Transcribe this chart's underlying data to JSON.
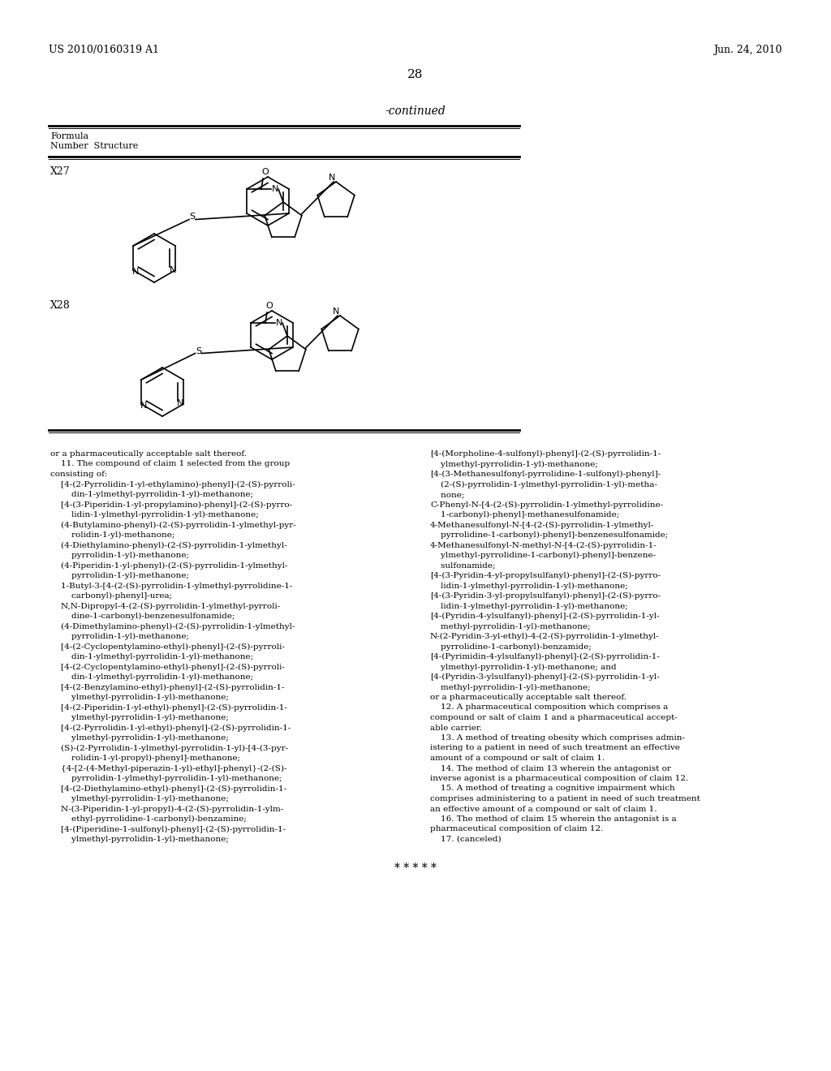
{
  "background_color": "#ffffff",
  "header_left": "US 2010/0160319 A1",
  "header_right": "Jun. 24, 2010",
  "page_number": "28",
  "continued_label": "-continued",
  "table_header_line1": "Formula",
  "table_header_line2": "Number  Structure",
  "formula_x27": "X27",
  "formula_x28": "X28",
  "text_block": "or a pharmaceutically acceptable salt thereof.\n    11. The compound of claim 1 selected from the group\nconsisting of:\n    [4-(2-Pyrrolidin-1-yl-ethylamino)-phenyl]-(2-(S)-pyrroli-\n        din-1-ylmethyl-pyrrolidin-1-yl)-methanone;\n    [4-(3-Piperidin-1-yl-propylamino)-phenyl]-(2-(S)-pyrro-\n        lidin-1-ylmethyl-pyrrolidin-1-yl)-methanone;\n    (4-Butylamino-phenyl)-(2-(S)-pyrrolidin-1-ylmethyl-pyr-\n        rolidin-1-yl)-methanone;\n    (4-Diethylamino-phenyl)-(2-(S)-pyrrolidin-1-ylmethyl-\n        pyrrolidin-1-yl)-methanone;\n    (4-Piperidin-1-yl-phenyl)-(2-(S)-pyrrolidin-1-ylmethyl-\n        pyrrolidin-1-yl)-methanone;\n    1-Butyl-3-[4-(2-(S)-pyrrolidin-1-ylmethyl-pyrrolidine-1-\n        carbonyl)-phenyl]-urea;\n    N,N-Dipropyl-4-(2-(S)-pyrrolidin-1-ylmethyl-pyrroli-\n        dine-1-carbonyl)-benzenesulfonamide;\n    (4-Dimethylamino-phenyl)-(2-(S)-pyrrolidin-1-ylmethyl-\n        pyrrolidin-1-yl)-methanone;\n    [4-(2-Cyclopentylamino-ethyl)-phenyl]-(2-(S)-pyrroli-\n        din-1-ylmethyl-pyrrolidin-1-yl)-methanone;\n    [4-(2-Cyclopentylamino-ethyl)-phenyl]-(2-(S)-pyrroli-\n        din-1-ylmethyl-pyrrolidin-1-yl)-methanone;\n    [4-(2-Benzylamino-ethyl)-phenyl]-(2-(S)-pyrrolidin-1-\n        ylmethyl-pyrrolidin-1-yl)-methanone;\n    [4-(2-Piperidin-1-yl-ethyl)-phenyl]-(2-(S)-pyrrolidin-1-\n        ylmethyl-pyrrolidin-1-yl)-methanone;\n    [4-(2-Pyrrolidin-1-yl-ethyl)-phenyl]-(2-(S)-pyrrolidin-1-\n        ylmethyl-pyrrolidin-1-yl)-methanone;\n    (S)-(2-Pyrrolidin-1-ylmethyl-pyrrolidin-1-yl)-[4-(3-pyr-\n        rolidin-1-yl-propyl)-phenyl]-methanone;\n    {4-[2-(4-Methyl-piperazin-1-yl)-ethyl]-phenyl}-(2-(S)-\n        pyrrolidin-1-ylmethyl-pyrrolidin-1-yl)-methanone;\n    [4-(2-Diethylamino-ethyl)-phenyl]-(2-(S)-pyrrolidin-1-\n        ylmethyl-pyrrolidin-1-yl)-methanone;\n    N-(3-Piperidin-1-yl-propyl)-4-(2-(S)-pyrrolidin-1-ylm-\n        ethyl-pyrrolidine-1-carbonyl)-benzamine;\n    [4-(Piperidine-1-sulfonyl)-phenyl]-(2-(S)-pyrrolidin-1-\n        ylmethyl-pyrrolidin-1-yl)-methanone;",
  "text_block_right": "[4-(Morpholine-4-sulfonyl)-phenyl]-(2-(S)-pyrrolidin-1-\n    ylmethyl-pyrrolidin-1-yl)-methanone;\n[4-(3-Methanesulfonyl-pyrrolidine-1-sulfonyl)-phenyl]-\n    (2-(S)-pyrrolidin-1-ylmethyl-pyrrolidin-1-yl)-metha-\n    none;\nC-Phenyl-N-[4-(2-(S)-pyrrolidin-1-ylmethyl-pyrrolidine-\n    1-carbonyl)-phenyl]-methanesulfonamide;\n4-Methanesulfonyl-N-[4-(2-(S)-pyrrolidin-1-ylmethyl-\n    pyrrolidine-1-carbonyl)-phenyl]-benzenesulfonamide;\n4-Methanesulfonyl-N-methyl-N-[4-(2-(S)-pyrrolidin-1-\n    ylmethyl-pyrrolidine-1-carbonyl)-phenyl]-benzene-\n    sulfonamide;\n[4-(3-Pyridin-4-yl-propylsulfanyl)-phenyl]-(2-(S)-pyrro-\n    lidin-1-ylmethyl-pyrrolidin-1-yl)-methanone;\n[4-(3-Pyridin-3-yl-propylsulfanyl)-phenyl]-(2-(S)-pyrro-\n    lidin-1-ylmethyl-pyrrolidin-1-yl)-methanone;\n[4-(Pyridin-4-ylsulfanyl)-phenyl]-(2-(S)-pyrrolidin-1-yl-\n    methyl-pyrrolidin-1-yl)-methanone;\nN-(2-Pyridin-3-yl-ethyl)-4-(2-(S)-pyrrolidin-1-ylmethyl-\n    pyrrolidine-1-carbonyl)-benzamide;\n[4-(Pyrimidin-4-ylsulfanyl)-phenyl]-(2-(S)-pyrrolidin-1-\n    ylmethyl-pyrrolidin-1-yl)-methanone; and\n[4-(Pyridin-3-ylsulfanyl)-phenyl]-(2-(S)-pyrrolidin-1-yl-\n    methyl-pyrrolidin-1-yl)-methanone;\nor a pharmaceutically acceptable salt thereof.\n    12. A pharmaceutical composition which comprises a\ncompound or salt of claim 1 and a pharmaceutical accept-\nable carrier.\n    13. A method of treating obesity which comprises admin-\nistering to a patient in need of such treatment an effective\namount of a compound or salt of claim 1.\n    14. The method of claim 13 wherein the antagonist or\ninverse agonist is a pharmaceutical composition of claim 12.\n    15. A method of treating a cognitive impairment which\ncomprises administering to a patient in need of such treatment\nan effective amount of a compound or salt of claim 1.\n    16. The method of claim 15 wherein the antagonist is a\npharmaceutical composition of claim 12.\n    17. (canceled)\n\n* * * * *"
}
